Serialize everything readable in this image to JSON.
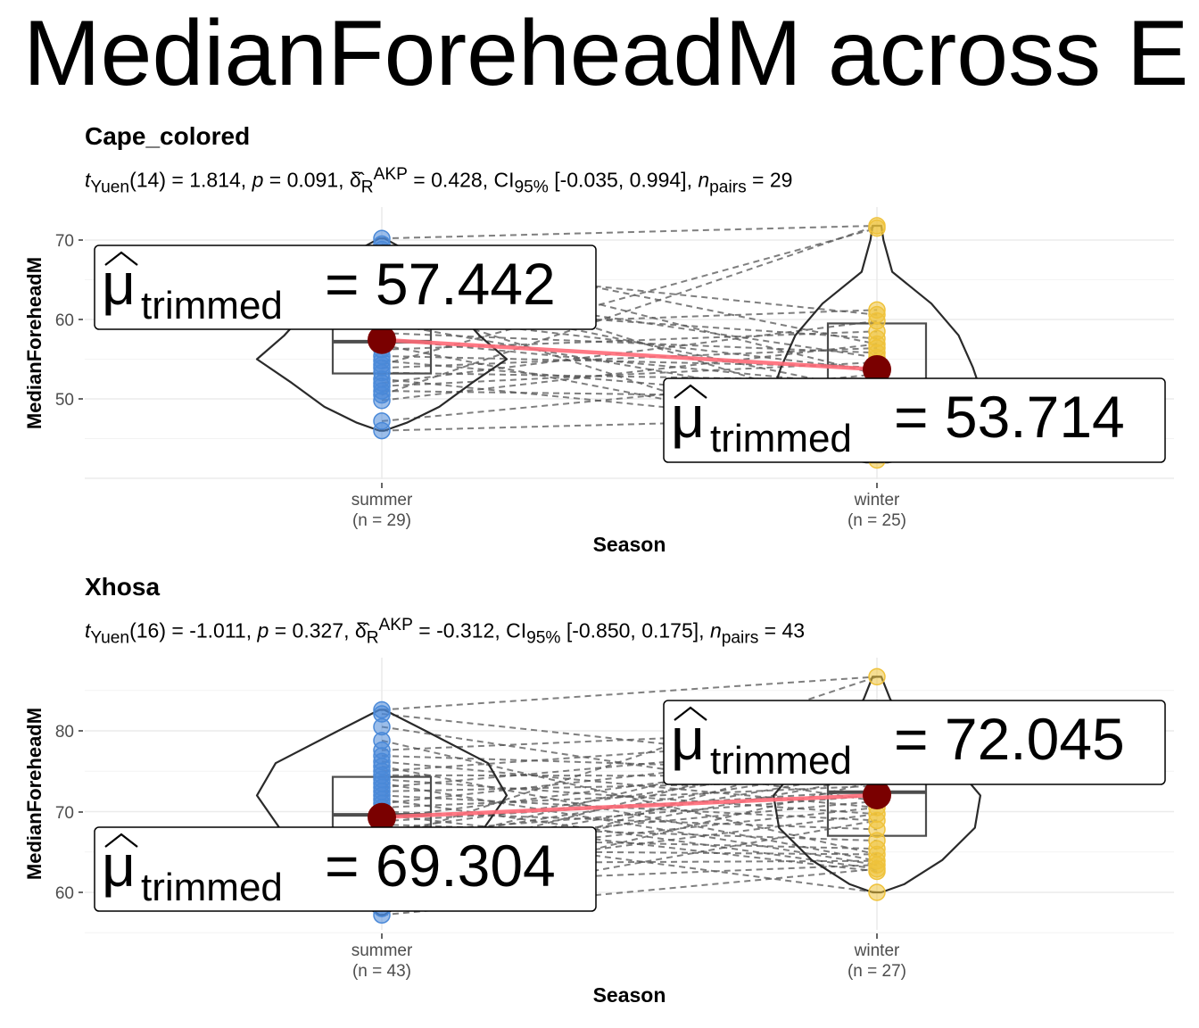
{
  "title": "MedianForeheadM across E",
  "panels": [
    {
      "title": "Cape_colored",
      "stats_text": "tYuen(14) = 1.814, p = 0.091, δR^AKP = 0.428, CI95% [-0.035, 0.994], npairs = 29",
      "stats": {
        "df": "14",
        "statistic": "1.814",
        "p": "0.091",
        "effect": "0.428",
        "ci": "[-0.035, 0.994]",
        "npairs": "29"
      },
      "xlabel": "Season",
      "ylabel": "MedianForeheadM",
      "ticks": [
        "50",
        "60",
        "70"
      ],
      "groups": [
        "summer",
        "winter"
      ],
      "ns": [
        "(n = 29)",
        "(n = 25)"
      ],
      "labels": [
        "= 57.442",
        "= 53.714"
      ]
    },
    {
      "title": "Xhosa",
      "stats_text": "tYuen(16) = -1.011, p = 0.327, δR^AKP = -0.312, CI95% [-0.850, 0.175], npairs = 43",
      "stats": {
        "df": "16",
        "statistic": "-1.011",
        "p": "0.327",
        "effect": "-0.312",
        "ci": "[-0.850, 0.175]",
        "npairs": "43"
      },
      "xlabel": "Season",
      "ylabel": "MedianForeheadM",
      "ticks": [
        "60",
        "70",
        "80"
      ],
      "groups": [
        "summer",
        "winter"
      ],
      "ns": [
        "(n = 43)",
        "(n = 27)"
      ],
      "labels": [
        "= 69.304",
        "= 72.045"
      ]
    }
  ],
  "chart_data": [
    {
      "type": "violin",
      "title": "Cape_colored",
      "xlabel": "Season",
      "ylabel": "MedianForeheadM",
      "categories": [
        "summer",
        "winter"
      ],
      "ylim": [
        40,
        73
      ],
      "colors": {
        "summer": "#4a89d8",
        "winter": "#efc23a",
        "mean_point": "#7a0000",
        "mean_line": "#ff6b78"
      },
      "n": [
        29,
        25
      ],
      "trimmed_means": [
        57.442,
        53.714
      ],
      "box": {
        "summer": {
          "q1": 53.2,
          "median": 57.2,
          "q3": 60.1
        },
        "winter": {
          "q1": 48,
          "median": 52,
          "q3": 59.5
        }
      },
      "points": {
        "summer": [
          70.2,
          69.5,
          68.8,
          67.5,
          66.9,
          64.5,
          63.7,
          62.5,
          61.8,
          60.8,
          59.6,
          59.0,
          58.3,
          57.5,
          56.8,
          56.2,
          55.4,
          54.8,
          54.3,
          53.9,
          53.3,
          52.5,
          52.0,
          51.6,
          51.0,
          50.5,
          49.8,
          47.2,
          46.0
        ],
        "winter": [
          71.8,
          71.5,
          61.2,
          60.6,
          59.8,
          58.5,
          57.6,
          56.9,
          56.4,
          55.8,
          55.2,
          54.6,
          54.0,
          53.6,
          53.1,
          52.3,
          51.6,
          50.9,
          50.2,
          49.5,
          48.7,
          47.6,
          46.3,
          44.8,
          42.3
        ]
      }
    },
    {
      "type": "violin",
      "title": "Xhosa",
      "xlabel": "Season",
      "ylabel": "MedianForeheadM",
      "categories": [
        "summer",
        "winter"
      ],
      "ylim": [
        56.4,
        87.2
      ],
      "colors": {
        "summer": "#4a89d8",
        "winter": "#efc23a",
        "mean_point": "#7a0000",
        "mean_line": "#ff6b78"
      },
      "n": [
        43,
        27
      ],
      "trimmed_means": [
        69.304,
        72.045
      ],
      "box": {
        "summer": {
          "q1": 63.5,
          "median": 69.6,
          "q3": 74.3
        },
        "winter": {
          "q1": 67.0,
          "median": 72.4,
          "q3": 76.5
        }
      },
      "points": {
        "summer": [
          82.6,
          82.1,
          80.5,
          78.8,
          77.6,
          76.9,
          76.2,
          75.6,
          75.0,
          74.5,
          74.0,
          73.5,
          73.0,
          72.5,
          72.0,
          71.5,
          71.0,
          70.5,
          70.0,
          69.6,
          69.2,
          68.8,
          68.4,
          68.0,
          67.6,
          67.2,
          66.8,
          66.4,
          66.0,
          65.6,
          65.2,
          64.8,
          64.4,
          64.0,
          63.6,
          63.2,
          62.8,
          62.0,
          61.0,
          60.0,
          59.0,
          58.0,
          57.2
        ],
        "winter": [
          86.7,
          80.2,
          79.3,
          78.5,
          77.7,
          77.0,
          76.3,
          75.6,
          75.0,
          74.4,
          73.8,
          73.2,
          72.6,
          72.0,
          71.3,
          70.5,
          69.7,
          68.9,
          67.8,
          66.4,
          65.4,
          64.7,
          63.9,
          63.4,
          62.9,
          62.6,
          60.0
        ]
      }
    }
  ]
}
